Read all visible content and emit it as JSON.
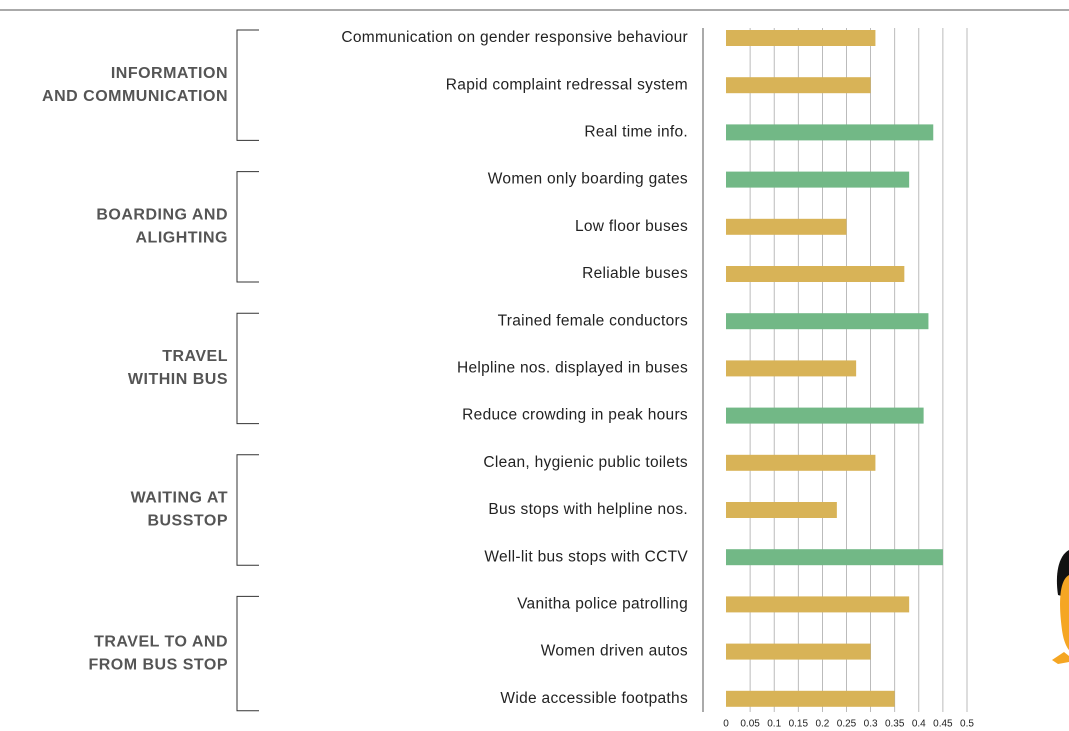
{
  "chart_data": {
    "type": "hbar",
    "categories": [
      "Communication on gender responsive behaviour",
      "Rapid complaint redressal system",
      "Real time info.",
      "Women only boarding gates",
      "Low floor buses",
      "Reliable buses",
      "Trained female conductors",
      "Helpline nos. displayed in buses",
      "Reduce crowding in peak hours",
      "Clean, hygienic public toilets",
      "Bus stops with helpline nos.",
      "Well-lit bus stops with CCTV",
      "Vanitha police patrolling",
      "Women driven autos",
      "Wide accessible footpaths"
    ],
    "values": [
      0.31,
      0.3,
      0.43,
      0.38,
      0.25,
      0.37,
      0.42,
      0.27,
      0.41,
      0.31,
      0.23,
      0.45,
      0.38,
      0.3,
      0.35
    ],
    "colors": [
      "#d8b357",
      "#d8b357",
      "#72b886",
      "#72b886",
      "#d8b357",
      "#d8b357",
      "#72b886",
      "#d8b357",
      "#72b886",
      "#d8b357",
      "#d8b357",
      "#72b886",
      "#d8b357",
      "#d8b357",
      "#d8b357"
    ],
    "groups": [
      {
        "lines": [
          "INFORMATION",
          "AND COMMUNICATION"
        ],
        "size": 3
      },
      {
        "lines": [
          "BOARDING AND",
          "ALIGHTING"
        ],
        "size": 3
      },
      {
        "lines": [
          "TRAVEL",
          "WITHIN BUS"
        ],
        "size": 3
      },
      {
        "lines": [
          "WAITING AT",
          "BUSSTOP"
        ],
        "size": 3
      },
      {
        "lines": [
          "TRAVEL TO AND",
          "FROM BUS STOP"
        ],
        "size": 3
      }
    ],
    "xlim": [
      0,
      0.5
    ],
    "xticks": [
      0,
      0.05,
      0.1,
      0.15,
      0.2,
      0.25,
      0.3,
      0.35,
      0.4,
      0.45,
      0.5
    ],
    "grid": true
  }
}
